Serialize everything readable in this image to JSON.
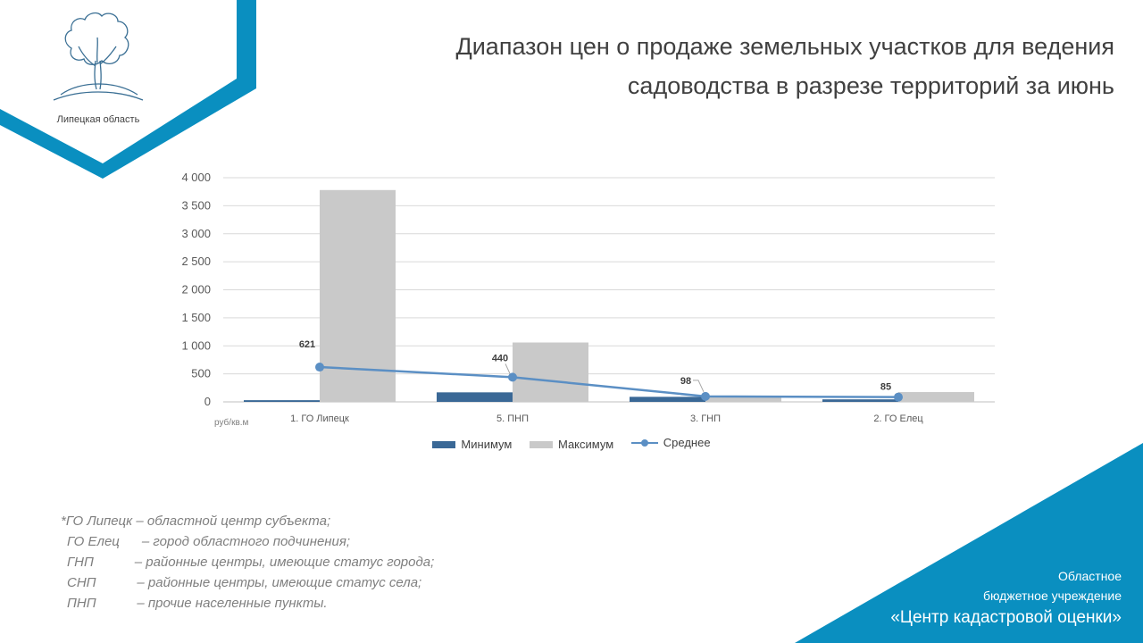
{
  "header": {
    "title_line1": "Диапазон цен о продаже земельных участков для ведения",
    "title_line2": "садоводства в разрезе территорий за июнь"
  },
  "logo": {
    "caption": "Липецкая область",
    "icon": "tree-logo-icon"
  },
  "colors": {
    "accent": "#0a8fc0",
    "min_series": "#3a6896",
    "max_series": "#c9c9c9",
    "avg_series": "#5b8fc4",
    "grid": "#d9d9d9",
    "note_text": "#7f7f7f"
  },
  "chart_data": {
    "type": "bar",
    "categories": [
      "1. ГО Липецк",
      "5. ПНП",
      "3. ГНП",
      "2. ГО Елец"
    ],
    "series": [
      {
        "name": "Минимум",
        "type": "bar",
        "values": [
          30,
          170,
          90,
          45
        ]
      },
      {
        "name": "Максимум",
        "type": "bar",
        "values": [
          3780,
          1060,
          100,
          175
        ]
      },
      {
        "name": "Среднее",
        "type": "line",
        "values": [
          621,
          440,
          98,
          85
        ],
        "labels": [
          "621",
          "440",
          "98",
          "85"
        ]
      }
    ],
    "yticks": [
      "0",
      "500",
      "1 000",
      "1 500",
      "2 000",
      "2 500",
      "3 000",
      "3 500",
      "4 000"
    ],
    "ylim": [
      0,
      4000
    ],
    "unit_label": "руб/кв.м",
    "grid": true,
    "legend_position": "bottom"
  },
  "notes": [
    {
      "term": "*ГО Липецк",
      "def": " – областной центр субъекта;"
    },
    {
      "term": "ГО Елец",
      "def": "      – город областного подчинения;"
    },
    {
      "term": "ГНП",
      "def": "           – районные центры, имеющие статус города;"
    },
    {
      "term": "СНП",
      "def": "           – районные центры, имеющие статус села;"
    },
    {
      "term": "ПНП",
      "def": "           – прочие населенные пункты."
    }
  ],
  "org": {
    "line1": "Областное",
    "line2": "бюджетное учреждение",
    "line3": "«Центр кадастровой оценки»"
  }
}
